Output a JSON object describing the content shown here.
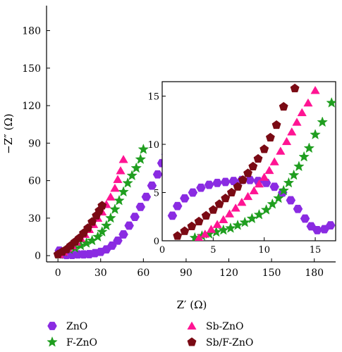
{
  "chart_data": [
    {
      "type": "scatter",
      "id": "main",
      "xlabel": "Z′ (Ω)",
      "ylabel": "−Z″ (Ω)",
      "xlim": [
        -8,
        195
      ],
      "ylim": [
        -5,
        200
      ],
      "xticks": [
        0,
        30,
        60,
        90,
        120,
        150,
        180
      ],
      "yticks": [
        0,
        30,
        60,
        90,
        120,
        150,
        180
      ],
      "legend_position": "bottom",
      "series": [
        {
          "name": "ZnO",
          "marker": "hexagon",
          "color": "#8a2be2",
          "points": [
            [
              1,
              4
            ],
            [
              3,
              1
            ],
            [
              6,
              0.5
            ],
            [
              10,
              0.6
            ],
            [
              14,
              1
            ],
            [
              18,
              1
            ],
            [
              22,
              1.2
            ],
            [
              26,
              2
            ],
            [
              30,
              3
            ],
            [
              34,
              5
            ],
            [
              38,
              8
            ],
            [
              42,
              12
            ],
            [
              46,
              17
            ],
            [
              50,
              24
            ],
            [
              54,
              31
            ],
            [
              58,
              39
            ],
            [
              62,
              47
            ],
            [
              66,
              56
            ],
            [
              70,
              65
            ],
            [
              73,
              74
            ],
            [
              76,
              81
            ]
          ]
        },
        {
          "name": "F-ZnO",
          "marker": "star",
          "color": "#1f9e1f",
          "points": [
            [
              1,
              1
            ],
            [
              4,
              3
            ],
            [
              8,
              5
            ],
            [
              12,
              6
            ],
            [
              16,
              8
            ],
            [
              20,
              10
            ],
            [
              24,
              12
            ],
            [
              28,
              15
            ],
            [
              31,
              19
            ],
            [
              34,
              24
            ],
            [
              37,
              30
            ],
            [
              40,
              37
            ],
            [
              43,
              44
            ],
            [
              46,
              51
            ],
            [
              49,
              58
            ],
            [
              52,
              64
            ],
            [
              55,
              70
            ],
            [
              58,
              77
            ],
            [
              60,
              85
            ]
          ]
        },
        {
          "name": "Sb-ZnO",
          "marker": "triangle",
          "color": "#ff1493",
          "points": [
            [
              1,
              1
            ],
            [
              4,
              3
            ],
            [
              7,
              6
            ],
            [
              10,
              8
            ],
            [
              13,
              11
            ],
            [
              16,
              14
            ],
            [
              19,
              17
            ],
            [
              22,
              21
            ],
            [
              25,
              25
            ],
            [
              28,
              30
            ],
            [
              31,
              35
            ],
            [
              34,
              41
            ],
            [
              37,
              47
            ],
            [
              40,
              54
            ],
            [
              42,
              61
            ],
            [
              44,
              68
            ],
            [
              46,
              77
            ]
          ]
        },
        {
          "name": "Sb/F-ZnO",
          "marker": "pentagon",
          "color": "#7a0a14",
          "points": [
            [
              0,
              1
            ],
            [
              3,
              3
            ],
            [
              6,
              5
            ],
            [
              9,
              8
            ],
            [
              12,
              11
            ],
            [
              15,
              14
            ],
            [
              18,
              18
            ],
            [
              21,
              22
            ],
            [
              24,
              27
            ],
            [
              27,
              32
            ],
            [
              29,
              36
            ],
            [
              31,
              40
            ]
          ]
        }
      ]
    },
    {
      "type": "scatter",
      "id": "inset",
      "xlabel": "",
      "ylabel": "",
      "xlim": [
        0,
        17
      ],
      "ylim": [
        0,
        16.5
      ],
      "xticks": [
        0,
        5,
        10,
        15
      ],
      "yticks": [
        0,
        5,
        10,
        15
      ],
      "series": [
        {
          "name": "ZnO",
          "marker": "hexagon",
          "color": "#8a2be2",
          "points": [
            [
              1,
              2.6
            ],
            [
              1.5,
              3.6
            ],
            [
              2.2,
              4.4
            ],
            [
              3,
              5
            ],
            [
              3.8,
              5.5
            ],
            [
              4.6,
              5.8
            ],
            [
              5.4,
              6
            ],
            [
              6.2,
              6.1
            ],
            [
              7,
              6.2
            ],
            [
              7.8,
              6.3
            ],
            [
              8.6,
              6.3
            ],
            [
              9.4,
              6.2
            ],
            [
              10.2,
              6
            ],
            [
              11,
              5.6
            ],
            [
              11.8,
              5
            ],
            [
              12.6,
              4.2
            ],
            [
              13.3,
              3.3
            ],
            [
              14,
              2.3
            ],
            [
              14.6,
              1.5
            ],
            [
              15.2,
              1.1
            ],
            [
              15.9,
              1.2
            ],
            [
              16.5,
              1.6
            ]
          ]
        },
        {
          "name": "F-ZnO",
          "marker": "star",
          "color": "#1f9e1f",
          "points": [
            [
              3.2,
              0.3
            ],
            [
              3.9,
              0.5
            ],
            [
              4.6,
              0.7
            ],
            [
              5.3,
              0.9
            ],
            [
              6,
              1.1
            ],
            [
              6.7,
              1.3
            ],
            [
              7.4,
              1.6
            ],
            [
              8.1,
              1.9
            ],
            [
              8.8,
              2.3
            ],
            [
              9.5,
              2.7
            ],
            [
              10.2,
              3.2
            ],
            [
              10.8,
              3.8
            ],
            [
              11.4,
              4.4
            ],
            [
              11.9,
              5.2
            ],
            [
              12.4,
              6
            ],
            [
              12.9,
              6.8
            ],
            [
              13.4,
              7.7
            ],
            [
              13.9,
              8.7
            ],
            [
              14.4,
              9.6
            ],
            [
              15,
              11
            ],
            [
              15.7,
              12.3
            ],
            [
              16.6,
              14.3
            ]
          ]
        },
        {
          "name": "Sb-ZnO",
          "marker": "triangle",
          "color": "#ff1493",
          "points": [
            [
              3.6,
              0.3
            ],
            [
              4.2,
              0.7
            ],
            [
              4.8,
              1.2
            ],
            [
              5.4,
              1.7
            ],
            [
              6,
              2.2
            ],
            [
              6.6,
              2.8
            ],
            [
              7.2,
              3.4
            ],
            [
              7.8,
              4
            ],
            [
              8.4,
              4.6
            ],
            [
              9,
              5.2
            ],
            [
              9.5,
              5.9
            ],
            [
              10,
              6.6
            ],
            [
              10.5,
              7.3
            ],
            [
              11,
              8.2
            ],
            [
              11.6,
              9.3
            ],
            [
              12.2,
              10.3
            ],
            [
              12.7,
              11.3
            ],
            [
              13.2,
              12.3
            ],
            [
              13.7,
              13.3
            ],
            [
              14.3,
              14.3
            ],
            [
              15,
              15.6
            ]
          ]
        },
        {
          "name": "Sb/F-ZnO",
          "marker": "pentagon",
          "color": "#7a0a14",
          "points": [
            [
              1.5,
              0.5
            ],
            [
              2.2,
              1
            ],
            [
              2.9,
              1.5
            ],
            [
              3.6,
              2
            ],
            [
              4.3,
              2.6
            ],
            [
              5,
              3.2
            ],
            [
              5.6,
              3.8
            ],
            [
              6.2,
              4.4
            ],
            [
              6.8,
              5
            ],
            [
              7.4,
              5.6
            ],
            [
              7.9,
              6.3
            ],
            [
              8.4,
              7
            ],
            [
              8.9,
              7.7
            ],
            [
              9.4,
              8.5
            ],
            [
              10,
              9.5
            ],
            [
              10.6,
              10.7
            ],
            [
              11.2,
              12
            ],
            [
              11.9,
              13.9
            ],
            [
              13,
              15.8
            ]
          ]
        }
      ]
    }
  ]
}
